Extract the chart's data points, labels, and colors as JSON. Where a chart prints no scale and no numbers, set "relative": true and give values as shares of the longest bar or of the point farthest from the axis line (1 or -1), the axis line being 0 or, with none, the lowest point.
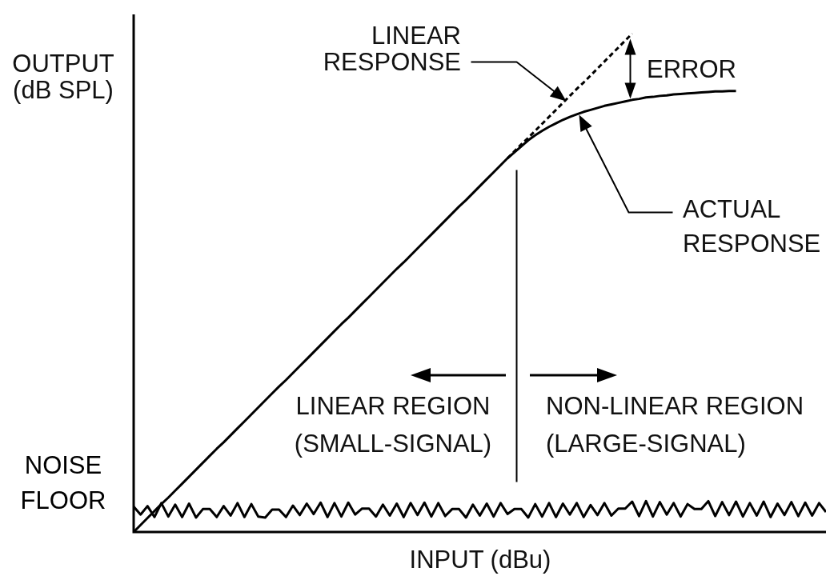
{
  "chart_data": {
    "type": "line",
    "relative": true,
    "xlabel": "INPUT (dBu)",
    "ylabel": "OUTPUT (dB SPL)",
    "categories": [
      null,
      null,
      null,
      null,
      null,
      null,
      null,
      null,
      null,
      null,
      null,
      null,
      null,
      null,
      null,
      null,
      null,
      null,
      null,
      null,
      null,
      null,
      null,
      null,
      null,
      null,
      null,
      null,
      null,
      null,
      null,
      null,
      null,
      null,
      null,
      null,
      null,
      null,
      null,
      null,
      null,
      null,
      null,
      null,
      null,
      null,
      null,
      null,
      null,
      null,
      null,
      null,
      null,
      null,
      null,
      null,
      null,
      null,
      null,
      null,
      null,
      null,
      null,
      null,
      null,
      null,
      null,
      null,
      null,
      null,
      null,
      null,
      null,
      null,
      null,
      null,
      null,
      null,
      null,
      null,
      null,
      null,
      null,
      null,
      null,
      null,
      null,
      null,
      null,
      null,
      null,
      null,
      null,
      null,
      null,
      null,
      null,
      null,
      null,
      null,
      null
    ],
    "series": [
      {
        "color": "#000000",
        "values": [
          0,
          0.014,
          0.028,
          0.042,
          0.056,
          0.069,
          0.083,
          0.097,
          0.111,
          0.125,
          0.139,
          0.153,
          0.167,
          0.18,
          0.194,
          0.208,
          0.222,
          0.236,
          0.25,
          0.264,
          0.278,
          0.292,
          0.305,
          0.319,
          0.333,
          0.347,
          0.361,
          0.375,
          0.389,
          0.403,
          0.417,
          0.43,
          0.444,
          0.458,
          0.472,
          0.486,
          0.5,
          0.514,
          0.528,
          0.541,
          0.555,
          0.569,
          0.583,
          0.597,
          0.611,
          0.625,
          0.639,
          0.653,
          0.666,
          0.68,
          0.694,
          0.708,
          0.722,
          0.736,
          0.75,
          0.762,
          0.774,
          0.786,
          0.796,
          0.805,
          0.813,
          0.82,
          0.827,
          0.833,
          0.838,
          0.843,
          0.847,
          0.851,
          0.855,
          0.858,
          0.861,
          0.864,
          0.867,
          0.869,
          0.872,
          0.873,
          0.875,
          0.876,
          0.878,
          0.879,
          0.88,
          0.881,
          0.882,
          0.883,
          0.884,
          0.884,
          0.885,
          0.885,
          null,
          null,
          null,
          null,
          null,
          null,
          null,
          null,
          null,
          null,
          null,
          null,
          null
        ]
      },
      {
        "color": "#000000",
        "line_style": "dashed",
        "values": [
          null,
          null,
          null,
          null,
          null,
          null,
          null,
          null,
          null,
          null,
          null,
          null,
          null,
          null,
          null,
          null,
          null,
          null,
          null,
          null,
          null,
          null,
          null,
          null,
          null,
          null,
          null,
          null,
          null,
          null,
          null,
          null,
          null,
          null,
          null,
          null,
          null,
          null,
          null,
          null,
          null,
          null,
          null,
          null,
          null,
          null,
          null,
          null,
          null,
          null,
          null,
          null,
          null,
          null,
          0.75,
          0.764,
          0.778,
          0.791,
          0.805,
          0.819,
          0.833,
          0.847,
          0.861,
          0.875,
          0.889,
          0.902,
          0.916,
          0.93,
          0.944,
          0.958,
          0.972,
          0.986,
          1,
          null,
          null,
          null,
          null,
          null,
          null,
          null,
          null,
          null,
          null,
          null,
          null,
          null,
          null,
          null,
          null,
          null,
          null,
          null,
          null,
          null,
          null,
          null,
          null,
          null,
          null,
          null,
          null
        ]
      },
      {
        "name": "NOISE FLOOR",
        "color": "#000000",
        "values": [
          0.051,
          0.035,
          0.052,
          0.03,
          0.058,
          0.031,
          0.055,
          0.03,
          0.057,
          0.029,
          0.046,
          0.046,
          0.03,
          0.052,
          0.033,
          0.058,
          0.03,
          0.056,
          0.031,
          0.029,
          0.045,
          0.045,
          0.03,
          0.053,
          0.034,
          0.057,
          0.036,
          0.059,
          0.03,
          0.058,
          0.031,
          0.059,
          0.035,
          0.047,
          0.047,
          0.031,
          0.055,
          0.033,
          0.057,
          0.03,
          0.058,
          0.034,
          0.059,
          0.031,
          0.058,
          0.032,
          0.046,
          0.046,
          0.029,
          0.055,
          0.033,
          0.057,
          0.031,
          0.058,
          0.036,
          0.046,
          0.046,
          0.029,
          0.056,
          0.031,
          0.058,
          0.03,
          0.057,
          0.035,
          0.058,
          0.03,
          0.054,
          0.034,
          0.058,
          0.033,
          0.047,
          0.047,
          0.061,
          0.032,
          0.062,
          0.031,
          0.06,
          0.035,
          0.058,
          0.031,
          0.056,
          0.046,
          0.046,
          0.062,
          0.032,
          0.06,
          0.034,
          0.061,
          0.031,
          0.058,
          0.033,
          0.061,
          0.03,
          0.057,
          0.034,
          0.06,
          0.032,
          0.059,
          0.033,
          0.058,
          0.04
        ]
      }
    ],
    "annotations": [
      "LINEAR RESPONSE",
      "ERROR",
      "ACTUAL RESPONSE",
      "LINEAR REGION (SMALL-SIGNAL)",
      "NON-LINEAR REGION (LARGE-SIGNAL)"
    ]
  }
}
